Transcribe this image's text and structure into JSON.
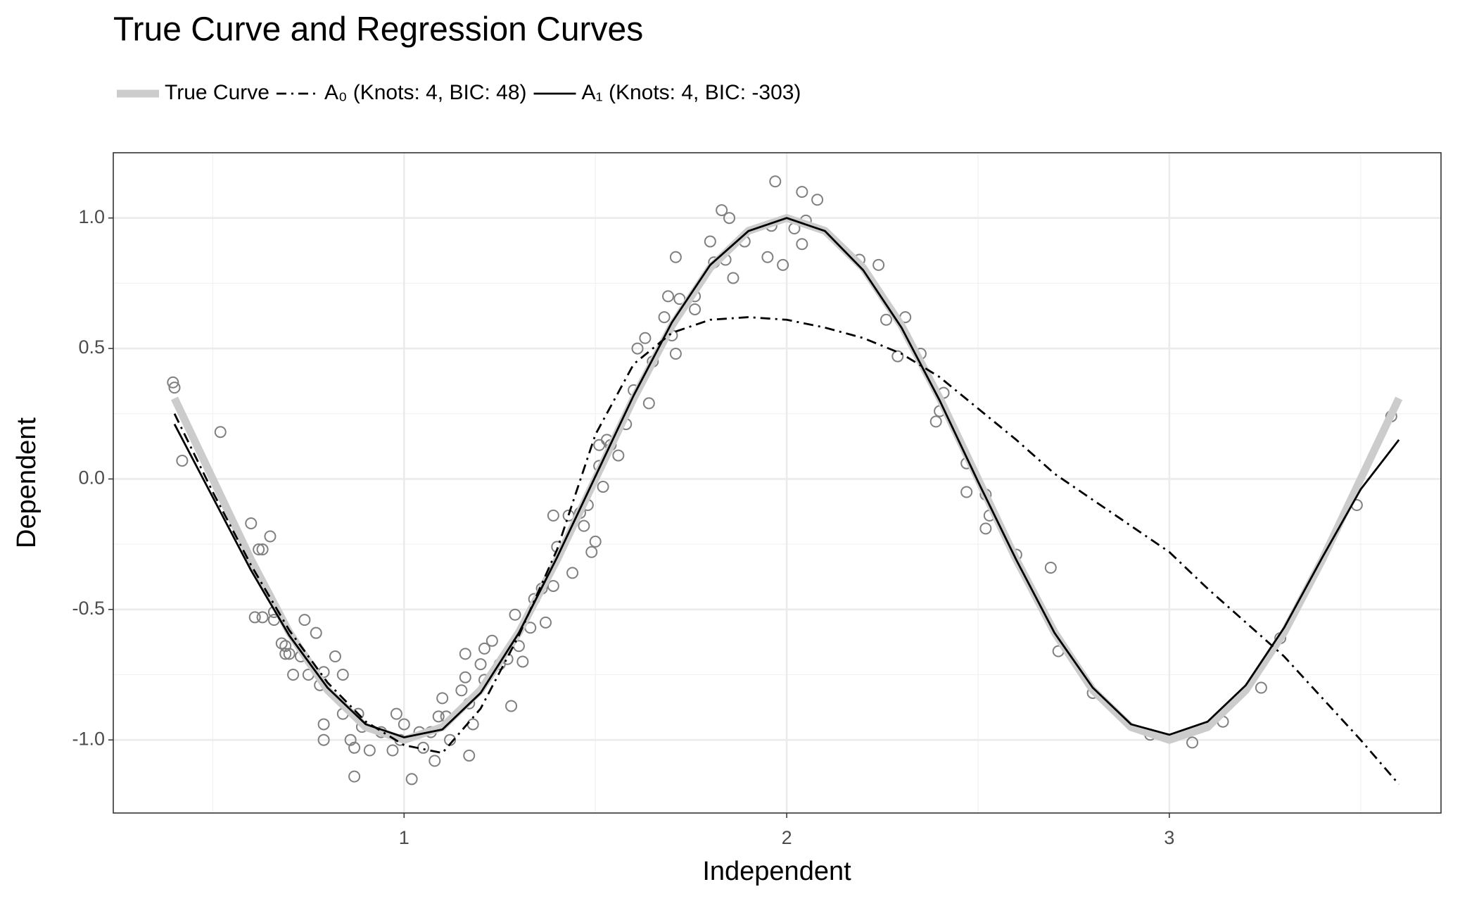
{
  "chart_data": {
    "type": "line",
    "title": "True Curve and Regression Curves",
    "x_label": "Independent",
    "y_label": "Dependent",
    "legend_position": "top",
    "grid": true,
    "xlim": [
      0.24,
      3.71
    ],
    "ylim": [
      -1.28,
      1.25
    ],
    "xticks": [
      1,
      2,
      3
    ],
    "yticks": [
      {
        "value": -1,
        "label": "-1.0"
      },
      {
        "value": -0.5,
        "label": "-0.5"
      },
      {
        "value": 0,
        "label": "0.0"
      },
      {
        "value": 0.5,
        "label": "0.5"
      },
      {
        "value": 1,
        "label": "1.0"
      }
    ],
    "x_minor_grid": [
      0.5,
      1.5,
      2.5,
      3.5
    ],
    "y_minor_grid": [
      -0.75,
      -0.25,
      0.25,
      0.75
    ],
    "x": [
      0.4,
      0.5,
      0.6,
      0.7,
      0.8,
      0.9,
      1.0,
      1.1,
      1.2,
      1.3,
      1.4,
      1.5,
      1.6,
      1.7,
      1.8,
      1.9,
      2.0,
      2.1,
      2.2,
      2.3,
      2.4,
      2.5,
      2.6,
      2.7,
      2.8,
      2.9,
      3.0,
      3.1,
      3.2,
      3.3,
      3.4,
      3.5,
      3.6
    ],
    "series": [
      {
        "name": "True Curve",
        "color": "#cccccc",
        "width": 11,
        "dash": "solid",
        "values": [
          0.309,
          0,
          -0.309,
          -0.588,
          -0.809,
          -0.951,
          -1,
          -0.951,
          -0.809,
          -0.588,
          -0.309,
          0,
          0.309,
          0.588,
          0.809,
          0.951,
          1,
          0.951,
          0.809,
          0.588,
          0.309,
          0,
          -0.309,
          -0.588,
          -0.809,
          -0.951,
          -1,
          -0.951,
          -0.809,
          -0.588,
          -0.309,
          0,
          0.309
        ]
      },
      {
        "name": "A₀ (Knots: 4, BIC: 48)",
        "color": "#000000",
        "width": 2.8,
        "dash": "dashdot",
        "values": [
          0.25,
          -0.05,
          -0.33,
          -0.58,
          -0.78,
          -0.93,
          -1.02,
          -1.05,
          -0.88,
          -0.6,
          -0.27,
          0.17,
          0.44,
          0.56,
          0.61,
          0.62,
          0.61,
          0.58,
          0.54,
          0.48,
          0.39,
          0.27,
          0.15,
          0.02,
          -0.08,
          -0.18,
          -0.28,
          -0.42,
          -0.55,
          -0.68,
          -0.84,
          -1.0,
          -1.17
        ]
      },
      {
        "name": "A₁ (Knots: 4, BIC: -303)",
        "color": "#000000",
        "width": 2.8,
        "dash": "solid",
        "values": [
          0.21,
          -0.07,
          -0.35,
          -0.6,
          -0.8,
          -0.94,
          -0.99,
          -0.96,
          -0.82,
          -0.59,
          -0.3,
          0.01,
          0.32,
          0.6,
          0.82,
          0.95,
          1.0,
          0.95,
          0.8,
          0.58,
          0.3,
          -0.01,
          -0.31,
          -0.59,
          -0.8,
          -0.94,
          -0.98,
          -0.93,
          -0.79,
          -0.57,
          -0.3,
          -0.04,
          0.15
        ]
      }
    ],
    "scatter": {
      "color": "#808080",
      "x": [
        0.396,
        0.4,
        0.42,
        0.52,
        0.6,
        0.62,
        0.63,
        0.65,
        0.61,
        0.63,
        0.66,
        0.66,
        0.68,
        0.69,
        0.69,
        0.7,
        0.71,
        0.74,
        0.73,
        0.75,
        0.77,
        0.78,
        0.79,
        0.79,
        0.79,
        0.82,
        0.84,
        0.84,
        0.86,
        0.87,
        0.87,
        0.88,
        0.89,
        0.91,
        0.94,
        0.97,
        0.98,
        0.99,
        1.0,
        1.02,
        1.04,
        1.05,
        1.07,
        1.08,
        1.09,
        1.1,
        1.11,
        1.12,
        1.15,
        1.16,
        1.16,
        1.17,
        1.17,
        1.18,
        1.2,
        1.21,
        1.21,
        1.23,
        1.25,
        1.27,
        1.28,
        1.29,
        1.3,
        1.31,
        1.33,
        1.34,
        1.37,
        1.36,
        1.39,
        1.39,
        1.4,
        1.43,
        1.44,
        1.46,
        1.47,
        1.48,
        1.49,
        1.5,
        1.51,
        1.51,
        1.52,
        1.53,
        1.54,
        1.56,
        1.58,
        1.6,
        1.61,
        1.63,
        1.64,
        1.65,
        1.68,
        1.69,
        1.7,
        1.71,
        1.71,
        1.72,
        1.76,
        1.76,
        1.8,
        1.81,
        1.83,
        1.84,
        1.85,
        1.86,
        1.89,
        1.95,
        1.96,
        1.97,
        1.99,
        2.02,
        2.04,
        2.04,
        2.05,
        2.08,
        2.19,
        2.24,
        2.26,
        2.29,
        2.31,
        2.35,
        2.39,
        2.4,
        2.41,
        2.47,
        2.47,
        2.52,
        2.52,
        2.53,
        2.6,
        2.69,
        2.71,
        2.8,
        2.95,
        3.06,
        3.14,
        3.24,
        3.29,
        3.49,
        3.58
      ],
      "values": [
        0.37,
        0.35,
        0.07,
        0.18,
        -0.17,
        -0.27,
        -0.27,
        -0.22,
        -0.53,
        -0.53,
        -0.51,
        -0.54,
        -0.63,
        -0.64,
        -0.67,
        -0.67,
        -0.75,
        -0.54,
        -0.68,
        -0.75,
        -0.59,
        -0.79,
        -0.74,
        -0.94,
        -1.0,
        -0.68,
        -0.75,
        -0.9,
        -1.0,
        -1.14,
        -1.03,
        -0.9,
        -0.95,
        -1.04,
        -0.97,
        -1.04,
        -0.9,
        -1.0,
        -0.94,
        -1.15,
        -0.97,
        -1.03,
        -0.97,
        -1.08,
        -0.91,
        -0.84,
        -0.91,
        -1.0,
        -0.81,
        -0.76,
        -0.67,
        -1.06,
        -0.86,
        -0.94,
        -0.71,
        -0.65,
        -0.77,
        -0.62,
        -0.71,
        -0.69,
        -0.87,
        -0.52,
        -0.64,
        -0.7,
        -0.57,
        -0.46,
        -0.55,
        -0.42,
        -0.41,
        -0.14,
        -0.26,
        -0.14,
        -0.36,
        -0.13,
        -0.18,
        -0.1,
        -0.28,
        -0.24,
        0.13,
        0.05,
        -0.03,
        0.15,
        0.13,
        0.09,
        0.21,
        0.34,
        0.5,
        0.54,
        0.29,
        0.45,
        0.62,
        0.7,
        0.55,
        0.48,
        0.85,
        0.69,
        0.7,
        0.65,
        0.91,
        0.83,
        1.03,
        0.84,
        1.0,
        0.77,
        0.91,
        0.85,
        0.97,
        1.14,
        0.82,
        0.96,
        0.9,
        1.1,
        0.99,
        1.07,
        0.84,
        0.82,
        0.61,
        0.47,
        0.62,
        0.48,
        0.22,
        0.26,
        0.33,
        0.06,
        -0.05,
        -0.06,
        -0.19,
        -0.14,
        -0.29,
        -0.34,
        -0.66,
        -0.82,
        -0.98,
        -1.01,
        -0.93,
        -0.8,
        -0.61,
        -0.1,
        0.24
      ]
    }
  }
}
